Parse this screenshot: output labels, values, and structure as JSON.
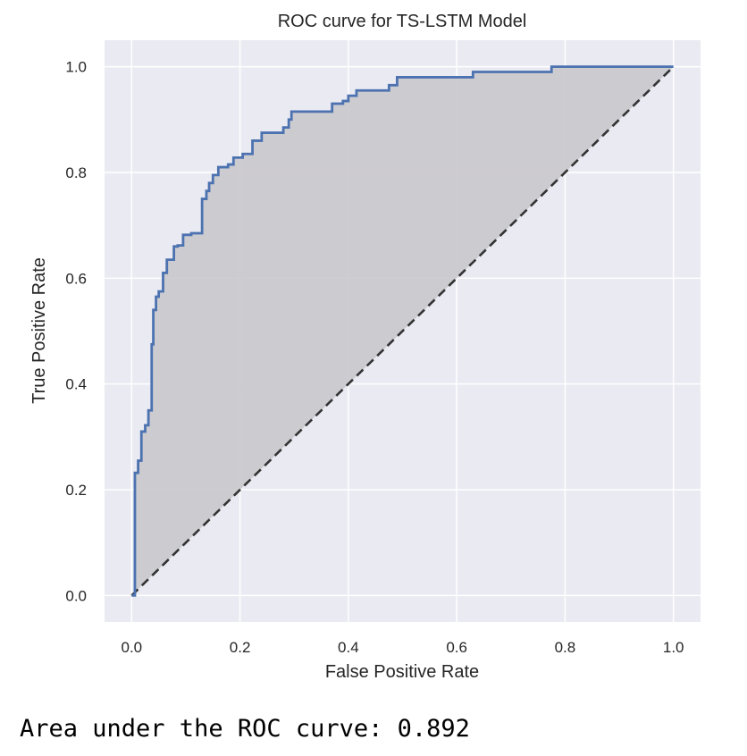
{
  "chart_data": {
    "type": "line",
    "title": "ROC curve for TS-LSTM Model",
    "xlabel": "False Positive Rate",
    "ylabel": "True Positive Rate",
    "xlim": [
      -0.05,
      1.05
    ],
    "ylim": [
      -0.05,
      1.05
    ],
    "xticks": [
      0.0,
      0.2,
      0.4,
      0.6,
      0.8,
      1.0
    ],
    "yticks": [
      0.0,
      0.2,
      0.4,
      0.6,
      0.8,
      1.0
    ],
    "xtick_labels": [
      "0.0",
      "0.2",
      "0.4",
      "0.6",
      "0.8",
      "1.0"
    ],
    "ytick_labels": [
      "0.0",
      "0.2",
      "0.4",
      "0.6",
      "0.8",
      "1.0"
    ],
    "grid": true,
    "legend": "none",
    "colors": {
      "background": "#eaeaf2",
      "grid": "#ffffff",
      "roc_line": "#4c72b0",
      "fill": "#c9c8cc",
      "diagonal": "#333333",
      "text": "#262626"
    },
    "series": [
      {
        "style": "solid",
        "x": [
          0.0,
          0.006,
          0.006,
          0.012,
          0.012,
          0.018,
          0.018,
          0.025,
          0.025,
          0.031,
          0.031,
          0.037,
          0.037,
          0.04,
          0.04,
          0.045,
          0.045,
          0.05,
          0.05,
          0.058,
          0.058,
          0.065,
          0.065,
          0.078,
          0.078,
          0.085,
          0.085,
          0.095,
          0.095,
          0.11,
          0.11,
          0.13,
          0.13,
          0.138,
          0.138,
          0.143,
          0.143,
          0.15,
          0.15,
          0.16,
          0.16,
          0.178,
          0.178,
          0.188,
          0.188,
          0.205,
          0.205,
          0.223,
          0.223,
          0.24,
          0.24,
          0.28,
          0.28,
          0.29,
          0.29,
          0.295,
          0.295,
          0.37,
          0.37,
          0.39,
          0.39,
          0.4,
          0.4,
          0.415,
          0.415,
          0.475,
          0.475,
          0.49,
          0.49,
          0.63,
          0.63,
          0.775,
          0.775,
          1.0
        ],
        "y": [
          0.0,
          0.0,
          0.232,
          0.232,
          0.255,
          0.255,
          0.31,
          0.31,
          0.322,
          0.322,
          0.35,
          0.35,
          0.475,
          0.475,
          0.54,
          0.54,
          0.565,
          0.565,
          0.575,
          0.575,
          0.61,
          0.61,
          0.635,
          0.635,
          0.66,
          0.66,
          0.662,
          0.662,
          0.682,
          0.682,
          0.685,
          0.685,
          0.75,
          0.75,
          0.765,
          0.765,
          0.78,
          0.78,
          0.795,
          0.795,
          0.81,
          0.81,
          0.815,
          0.815,
          0.828,
          0.828,
          0.835,
          0.835,
          0.86,
          0.86,
          0.875,
          0.875,
          0.885,
          0.885,
          0.9,
          0.9,
          0.915,
          0.915,
          0.93,
          0.93,
          0.935,
          0.935,
          0.945,
          0.945,
          0.955,
          0.955,
          0.965,
          0.965,
          0.98,
          0.98,
          0.99,
          0.99,
          1.0,
          1.0
        ]
      },
      {
        "style": "dashed",
        "x": [
          0.0,
          1.0
        ],
        "y": [
          0.0,
          1.0
        ]
      }
    ]
  },
  "output": {
    "text": "Area under the ROC curve: 0.892"
  }
}
